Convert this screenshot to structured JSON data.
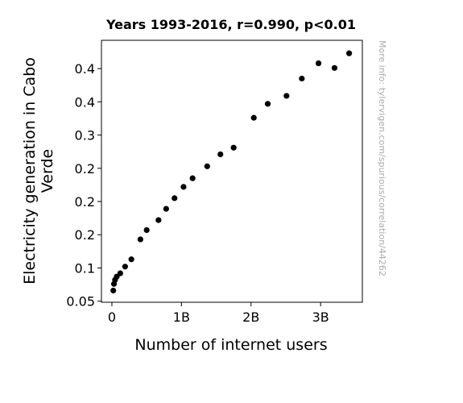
{
  "chart_data": {
    "type": "scatter",
    "title": "Years 1993-2016, r=0.990, p<0.01",
    "xlabel": "Number of internet users",
    "ylabel_lines": [
      "Electricity generation in Cabo",
      "Verde"
    ],
    "side_note": "More info: tylervigen.com/spurious/correlation/44262",
    "xlim": [
      -150000000,
      3600000000
    ],
    "ylim": [
      0.0484,
      0.4426
    ],
    "x_ticks": [
      {
        "value": 0,
        "label": "0"
      },
      {
        "value": 1000000000,
        "label": "1B"
      },
      {
        "value": 2000000000,
        "label": "2B"
      },
      {
        "value": 3000000000,
        "label": "3B"
      }
    ],
    "y_ticks": [
      {
        "value": 0.05,
        "label": "0.05"
      },
      {
        "value": 0.1,
        "label": "0.1"
      },
      {
        "value": 0.15,
        "label": "0.2"
      },
      {
        "value": 0.2,
        "label": "0.2"
      },
      {
        "value": 0.25,
        "label": "0.2"
      },
      {
        "value": 0.3,
        "label": "0.3"
      },
      {
        "value": 0.35,
        "label": "0.4"
      },
      {
        "value": 0.4,
        "label": "0.4"
      }
    ],
    "grid": false,
    "marker_color": "#000000",
    "points": [
      {
        "x": 20000000,
        "y": 0.066
      },
      {
        "x": 30000000,
        "y": 0.076
      },
      {
        "x": 45000000,
        "y": 0.082
      },
      {
        "x": 70000000,
        "y": 0.087
      },
      {
        "x": 120000000,
        "y": 0.092
      },
      {
        "x": 190000000,
        "y": 0.102
      },
      {
        "x": 280000000,
        "y": 0.113
      },
      {
        "x": 410000000,
        "y": 0.143
      },
      {
        "x": 500000000,
        "y": 0.157
      },
      {
        "x": 670000000,
        "y": 0.172
      },
      {
        "x": 780000000,
        "y": 0.189
      },
      {
        "x": 900000000,
        "y": 0.205
      },
      {
        "x": 1030000000,
        "y": 0.222
      },
      {
        "x": 1160000000,
        "y": 0.235
      },
      {
        "x": 1370000000,
        "y": 0.253
      },
      {
        "x": 1560000000,
        "y": 0.271
      },
      {
        "x": 1750000000,
        "y": 0.281
      },
      {
        "x": 2040000000,
        "y": 0.326
      },
      {
        "x": 2240000000,
        "y": 0.347
      },
      {
        "x": 2510000000,
        "y": 0.359
      },
      {
        "x": 2730000000,
        "y": 0.385
      },
      {
        "x": 2970000000,
        "y": 0.408
      },
      {
        "x": 3200000000,
        "y": 0.401
      },
      {
        "x": 3410000000,
        "y": 0.423
      }
    ]
  }
}
